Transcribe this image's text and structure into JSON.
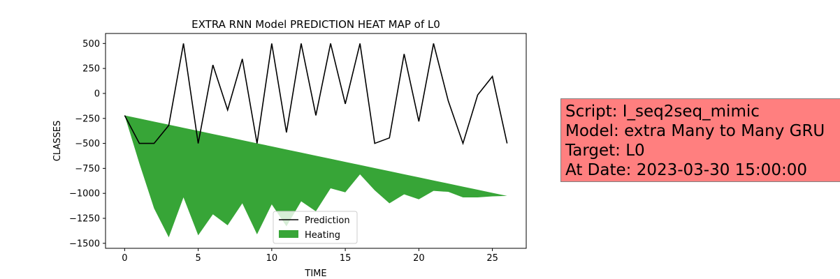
{
  "chart_data": {
    "type": "line",
    "title": "EXTRA RNN Model PREDICTION HEAT MAP of L0",
    "xlabel": "TIME",
    "ylabel": "CLASSES",
    "xlim": [
      -1.3,
      27.3
    ],
    "ylim": [
      -1550,
      600
    ],
    "xticks": [
      0,
      5,
      10,
      15,
      20,
      25
    ],
    "yticks": [
      -1500,
      -1250,
      -1000,
      -750,
      -500,
      -250,
      0,
      250,
      500
    ],
    "ytick_labels": [
      "−1500",
      "−1250",
      "−1000",
      "−750",
      "−500",
      "−250",
      "0",
      "250",
      "500"
    ],
    "grid": false,
    "legend_position": "bottom-center",
    "x": [
      0,
      1,
      2,
      3,
      4,
      5,
      6,
      7,
      8,
      9,
      10,
      11,
      12,
      13,
      14,
      15,
      16,
      17,
      18,
      19,
      20,
      21,
      22,
      23,
      24,
      25,
      26
    ],
    "series": [
      {
        "name": "Prediction",
        "kind": "line",
        "color": "#000000",
        "values": [
          -220,
          -500,
          -500,
          -320,
          500,
          -500,
          285,
          -165,
          345,
          -500,
          500,
          -390,
          500,
          -220,
          500,
          -105,
          500,
          -500,
          -445,
          395,
          -280,
          500,
          -75,
          -500,
          -15,
          170,
          -500
        ]
      },
      {
        "name": "Heating",
        "kind": "fill_between",
        "color": "#2ca02c",
        "upper": [
          -220,
          -251,
          -282,
          -313,
          -344,
          -375,
          -406,
          -437,
          -468,
          -499,
          -530,
          -561,
          -592,
          -623,
          -654,
          -685,
          -716,
          -747,
          -778,
          -809,
          -840,
          -871,
          -902,
          -933,
          -964,
          -995,
          -1026
        ],
        "lower": [
          -220,
          -700,
          -1150,
          -1440,
          -1040,
          -1420,
          -1210,
          -1320,
          -1100,
          -1410,
          -1110,
          -1330,
          -1080,
          -1180,
          -950,
          -990,
          -810,
          -970,
          -1100,
          -1010,
          -1060,
          -975,
          -985,
          -1040,
          -1040,
          -1030,
          -1026
        ]
      }
    ]
  },
  "info_box": {
    "lines": [
      "Script: I_seq2seq_mimic",
      "Model: extra Many to Many GRU",
      "Target: L0",
      "At Date: 2023-03-30 15:00:00"
    ],
    "background": "#ff7f7f"
  }
}
